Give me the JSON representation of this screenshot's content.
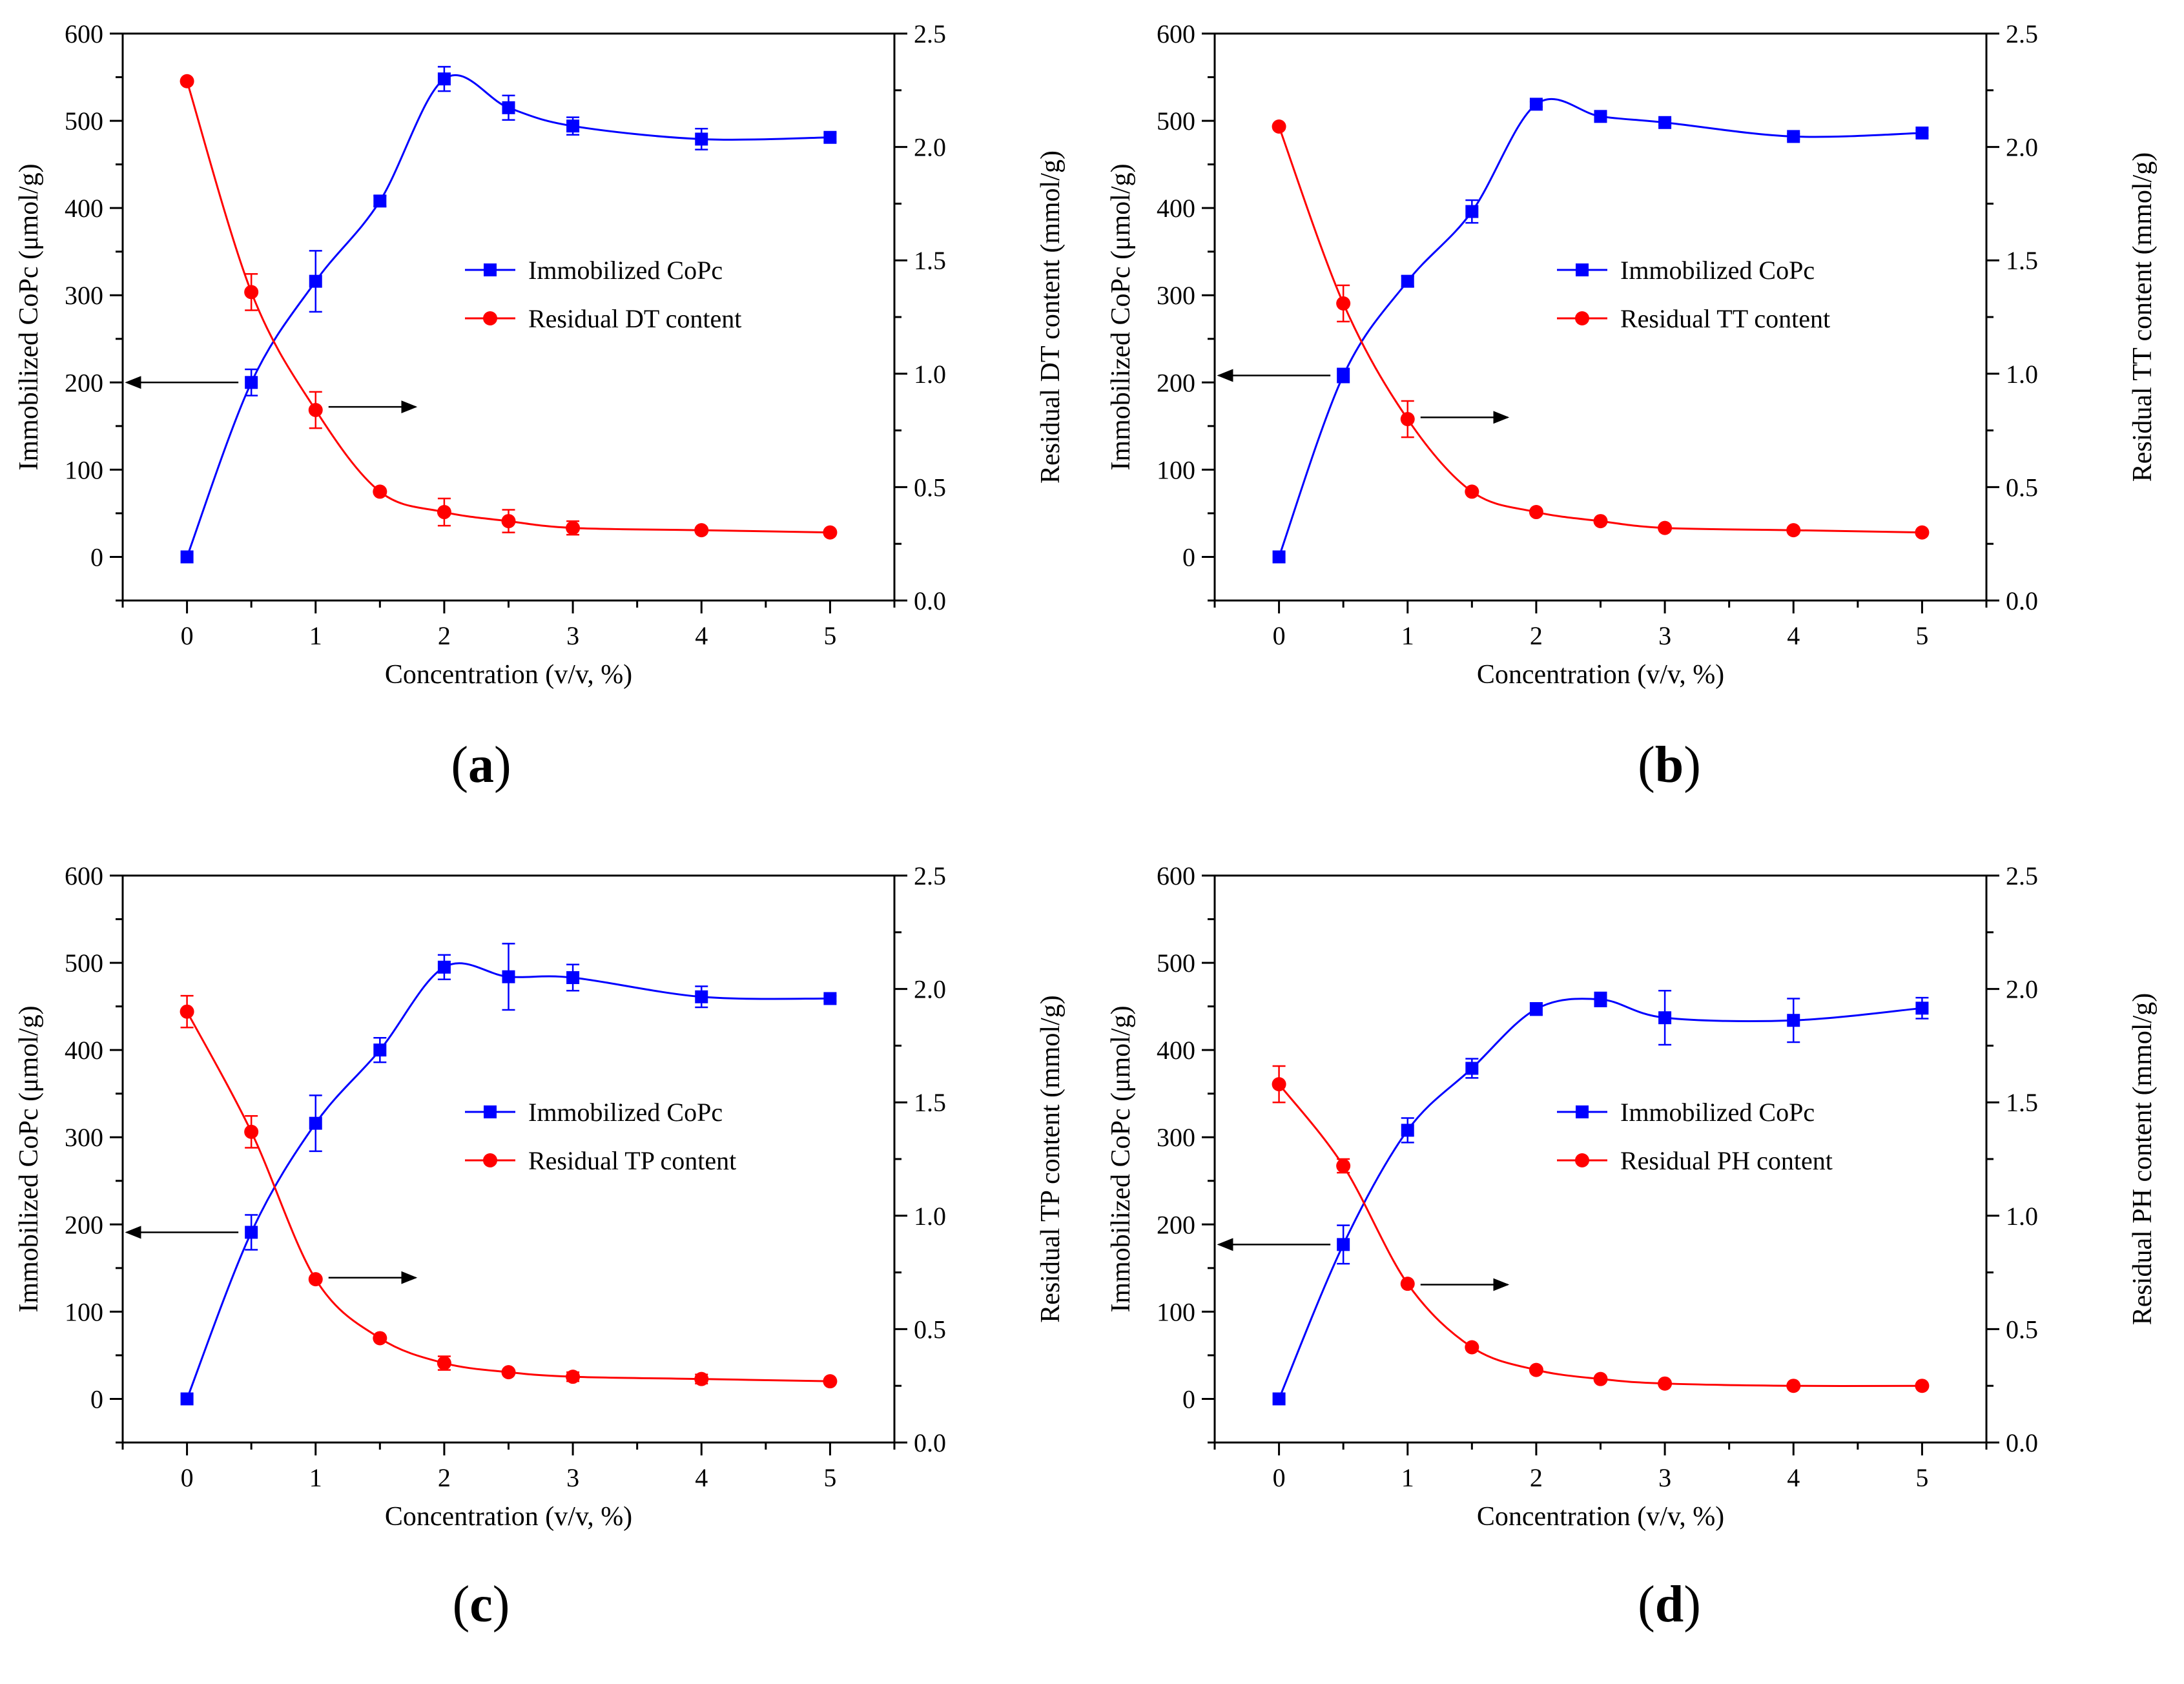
{
  "figure": {
    "captions": [
      "(a)",
      "(b)",
      "(c)",
      "(d)"
    ],
    "caption_letters": [
      "a",
      "b",
      "c",
      "d"
    ]
  },
  "colors": {
    "blue": "#0000ff",
    "red": "#ff0000",
    "axis": "#000000"
  },
  "chart_data": [
    {
      "type": "line",
      "title": "",
      "panel": "(a)",
      "xlabel": "Concentration (v/v, %)",
      "ylabel": "Immobilized CoPc (μmol/g)",
      "y2label": "Residual DT content (mmol/g)",
      "xlim": [
        -0.5,
        5.5
      ],
      "ylim": [
        -50,
        600
      ],
      "y2lim": [
        0.0,
        2.5
      ],
      "xticks": [
        "0",
        "1",
        "2",
        "3",
        "4",
        "5"
      ],
      "yticks": [
        "0",
        "100",
        "200",
        "300",
        "400",
        "500",
        "600"
      ],
      "y2ticks": [
        "0.0",
        "0.5",
        "1.0",
        "1.5",
        "2.0",
        "2.5"
      ],
      "legend_position": "center-right",
      "series": [
        {
          "name": "Immobilized CoPc",
          "axis": "left",
          "marker": "square",
          "x": [
            0,
            0.5,
            1,
            1.5,
            2,
            2.5,
            3,
            4,
            5
          ],
          "y": [
            0,
            200,
            316,
            408,
            548,
            515,
            494,
            479,
            481
          ],
          "err": [
            0,
            15,
            35,
            6,
            14,
            14,
            10,
            12,
            5
          ]
        },
        {
          "name": "Residual DT content",
          "axis": "right",
          "marker": "circle",
          "x": [
            0,
            0.5,
            1,
            1.5,
            2,
            2.5,
            3,
            4,
            5
          ],
          "y": [
            2.29,
            1.36,
            0.84,
            0.48,
            0.39,
            0.35,
            0.32,
            0.31,
            0.3
          ],
          "err": [
            0,
            0.08,
            0.08,
            0.01,
            0.06,
            0.05,
            0.03,
            0,
            0
          ]
        }
      ],
      "arrows": [
        {
          "x": 0.5,
          "y_left": 200,
          "direction": "left"
        },
        {
          "x": 1,
          "y_left": 172,
          "direction": "right"
        }
      ]
    },
    {
      "type": "line",
      "title": "",
      "panel": "(b)",
      "xlabel": "Concentration (v/v, %)",
      "ylabel": "Immobilized CoPc (μmol/g)",
      "y2label": "Residual TT content (mmol/g)",
      "xlim": [
        -0.5,
        5.5
      ],
      "ylim": [
        -50,
        600
      ],
      "y2lim": [
        0.0,
        2.5
      ],
      "xticks": [
        "0",
        "1",
        "2",
        "3",
        "4",
        "5"
      ],
      "yticks": [
        "0",
        "100",
        "200",
        "300",
        "400",
        "500",
        "600"
      ],
      "y2ticks": [
        "0.0",
        "0.5",
        "1.0",
        "1.5",
        "2.0",
        "2.5"
      ],
      "legend_position": "center-right",
      "series": [
        {
          "name": "Immobilized CoPc",
          "axis": "left",
          "marker": "square",
          "x": [
            0,
            0.5,
            1,
            1.5,
            2,
            2.5,
            3,
            4,
            5
          ],
          "y": [
            0,
            208,
            316,
            396,
            519,
            505,
            498,
            482,
            486
          ],
          "err": [
            0,
            8,
            6,
            13,
            3,
            3,
            3,
            3,
            3
          ]
        },
        {
          "name": "Residual TT content",
          "axis": "right",
          "marker": "circle",
          "x": [
            0,
            0.5,
            1,
            1.5,
            2,
            2.5,
            3,
            4,
            5
          ],
          "y": [
            2.09,
            1.31,
            0.8,
            0.48,
            0.39,
            0.35,
            0.32,
            0.31,
            0.3
          ],
          "err": [
            0,
            0.08,
            0.08,
            0,
            0,
            0,
            0,
            0,
            0
          ]
        }
      ],
      "arrows": [
        {
          "x": 0.5,
          "y_left": 208,
          "direction": "left"
        },
        {
          "x": 1,
          "y_left": 160,
          "direction": "right"
        }
      ]
    },
    {
      "type": "line",
      "title": "",
      "panel": "(c)",
      "xlabel": "Concentration (v/v, %)",
      "ylabel": "Immobilized CoPc (μmol/g)",
      "y2label": "Residual TP content (mmol/g)",
      "xlim": [
        -0.5,
        5.5
      ],
      "ylim": [
        -50,
        600
      ],
      "y2lim": [
        0.0,
        2.5
      ],
      "xticks": [
        "0",
        "1",
        "2",
        "3",
        "4",
        "5"
      ],
      "yticks": [
        "0",
        "100",
        "200",
        "300",
        "400",
        "500",
        "600"
      ],
      "y2ticks": [
        "0.0",
        "0.5",
        "1.0",
        "1.5",
        "2.0",
        "2.5"
      ],
      "legend_position": "center-right",
      "series": [
        {
          "name": "Immobilized CoPc",
          "axis": "left",
          "marker": "square",
          "x": [
            0,
            0.5,
            1,
            1.5,
            2,
            2.5,
            3,
            4,
            5
          ],
          "y": [
            0,
            191,
            316,
            400,
            495,
            484,
            483,
            461,
            459
          ],
          "err": [
            0,
            20,
            32,
            14,
            14,
            38,
            15,
            12,
            3
          ]
        },
        {
          "name": "Residual TP content",
          "axis": "right",
          "marker": "circle",
          "x": [
            0,
            0.5,
            1,
            1.5,
            2,
            2.5,
            3,
            4,
            5
          ],
          "y": [
            1.9,
            1.37,
            0.72,
            0.46,
            0.35,
            0.31,
            0.29,
            0.28,
            0.27
          ],
          "err": [
            0.07,
            0.07,
            0,
            0,
            0.03,
            0,
            0.02,
            0.02,
            0
          ]
        }
      ],
      "arrows": [
        {
          "x": 0.5,
          "y_left": 191,
          "direction": "left"
        },
        {
          "x": 1,
          "y_left": 139,
          "direction": "right"
        }
      ]
    },
    {
      "type": "line",
      "title": "",
      "panel": "(d)",
      "xlabel": "Concentration (v/v, %)",
      "ylabel": "Immobilized CoPc (μmol/g)",
      "y2label": "Residual PH content (mmol/g)",
      "xlim": [
        -0.5,
        5.5
      ],
      "ylim": [
        -50,
        600
      ],
      "y2lim": [
        0.0,
        2.5
      ],
      "xticks": [
        "0",
        "1",
        "2",
        "3",
        "4",
        "5"
      ],
      "yticks": [
        "0",
        "100",
        "200",
        "300",
        "400",
        "500",
        "600"
      ],
      "y2ticks": [
        "0.0",
        "0.5",
        "1.0",
        "1.5",
        "2.0",
        "2.5"
      ],
      "legend_position": "center-right",
      "series": [
        {
          "name": "Immobilized CoPc",
          "axis": "left",
          "marker": "square",
          "x": [
            0,
            0.5,
            1,
            1.5,
            2,
            2.5,
            3,
            4,
            5
          ],
          "y": [
            0,
            177,
            308,
            379,
            447,
            458,
            437,
            434,
            448
          ],
          "err": [
            0,
            22,
            14,
            11,
            7,
            8,
            31,
            25,
            12
          ]
        },
        {
          "name": "Residual PH content",
          "axis": "right",
          "marker": "circle",
          "x": [
            0,
            0.5,
            1,
            1.5,
            2,
            2.5,
            3,
            4,
            5
          ],
          "y": [
            1.58,
            1.22,
            0.7,
            0.42,
            0.32,
            0.28,
            0.26,
            0.25,
            0.25
          ],
          "err": [
            0.08,
            0.03,
            0,
            0,
            0,
            0,
            0,
            0,
            0
          ]
        }
      ],
      "arrows": [
        {
          "x": 0.5,
          "y_left": 177,
          "direction": "left"
        },
        {
          "x": 1,
          "y_left": 131,
          "direction": "right"
        }
      ]
    }
  ]
}
